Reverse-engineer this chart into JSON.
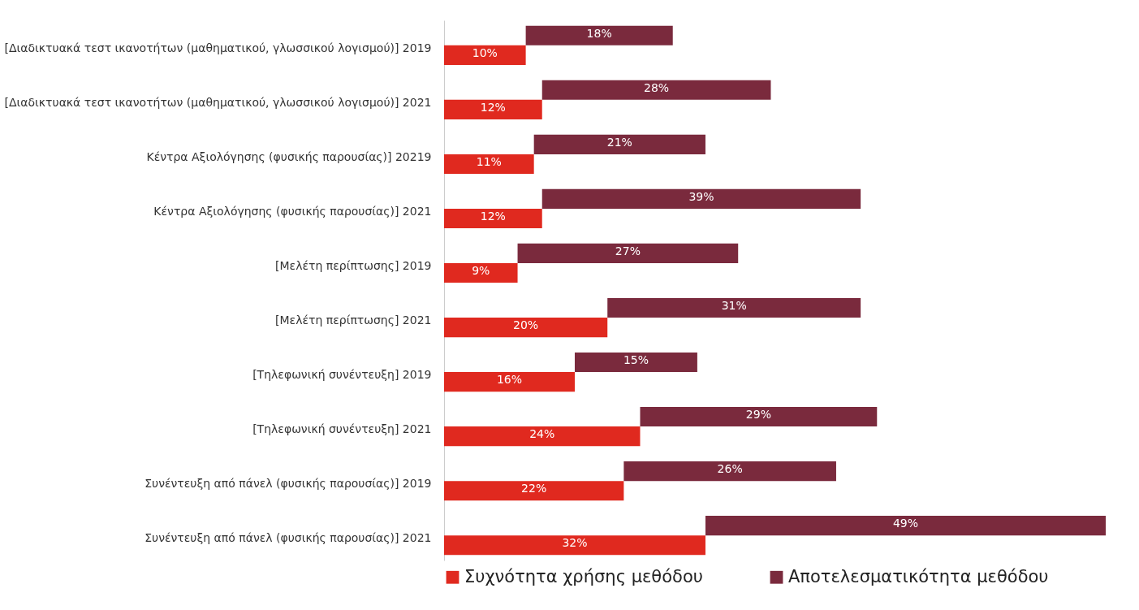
{
  "chart_data": {
    "type": "bar",
    "orientation": "horizontal",
    "stacked": true,
    "legend": "bottom",
    "grid": false,
    "categories": [
      "[Διαδικτυακά τεστ ικανοτήτων (μαθηματικού, γλωσσικού λογισμού)] 2019",
      "[Διαδικτυακά τεστ ικανοτήτων (μαθηματικού, γλωσσικού λογισμού)] 2021",
      "Κέντρα Αξιολόγησης (φυσικής παρουσίας)] 20219",
      "Κέντρα Αξιολόγησης (φυσικής παρουσίας)] 2021",
      "[Μελέτη περίπτωσης] 2019",
      "[Μελέτη περίπτωσης] 2021",
      "[Τηλεφωνική συνέντευξη] 2019",
      "[Τηλεφωνική συνέντευξη] 2021",
      "Συνέντευξη από πάνελ (φυσικής παρουσίας)] 2019",
      "Συνέντευξη από πάνελ (φυσικής παρουσίας)] 2021"
    ],
    "series": [
      {
        "name": "Συχνότητα χρήσης μεθόδου",
        "color": "#e0291f",
        "values": [
          10,
          12,
          11,
          12,
          9,
          20,
          16,
          24,
          22,
          32
        ],
        "value_labels": [
          "10%",
          "12%",
          "11%",
          "12%",
          "9%",
          "20%",
          "16%",
          "24%",
          "22%",
          "32%"
        ]
      },
      {
        "name": "Αποτελεσματικότητα μεθόδου",
        "color": "#7a2a3d",
        "values": [
          18,
          28,
          21,
          39,
          27,
          31,
          15,
          29,
          26,
          49
        ],
        "value_labels": [
          "18%",
          "28%",
          "21%",
          "39%",
          "27%",
          "31%",
          "15%",
          "29%",
          "26%",
          "49%"
        ]
      }
    ]
  }
}
